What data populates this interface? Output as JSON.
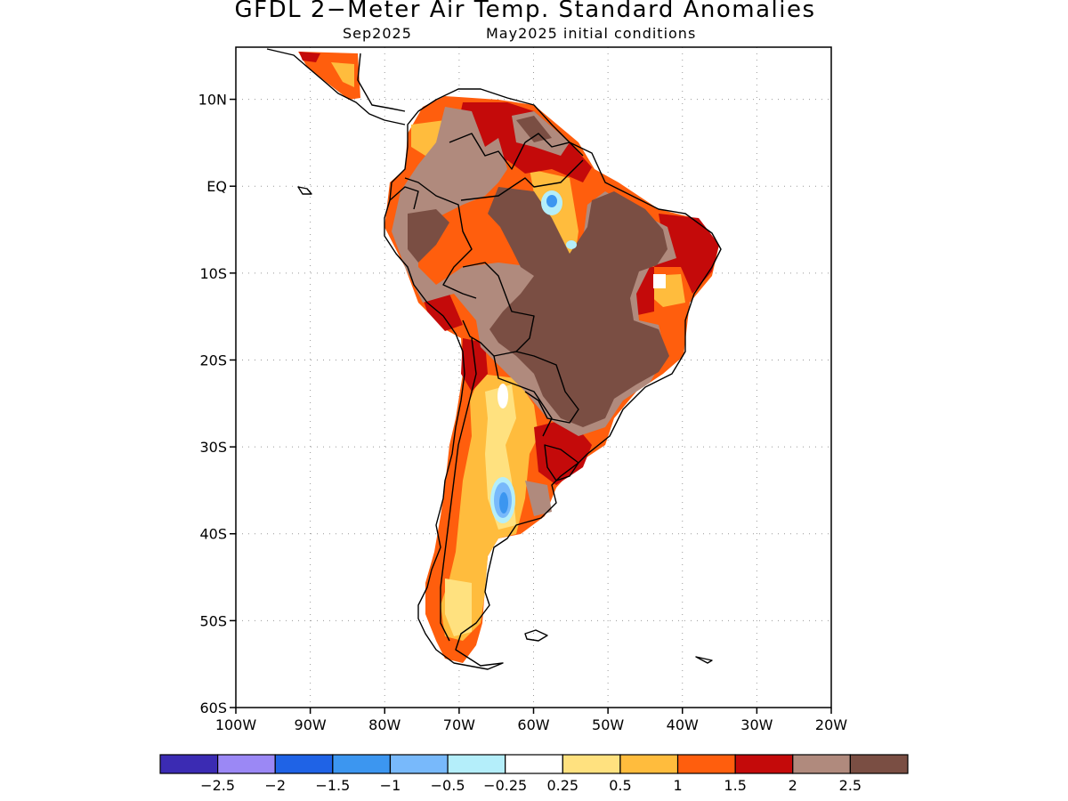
{
  "title": "GFDL 2−Meter Air Temp. Standard Anomalies",
  "subtitle_left": "Sep2025",
  "subtitle_right": "May2025 initial conditions",
  "map": {
    "lon_range": [
      -100,
      -20
    ],
    "lat_range": [
      -60,
      16
    ],
    "lat_ticks": [
      {
        "value": 10,
        "label": "10N"
      },
      {
        "value": 0,
        "label": "EQ"
      },
      {
        "value": -10,
        "label": "10S"
      },
      {
        "value": -20,
        "label": "20S"
      },
      {
        "value": -30,
        "label": "30S"
      },
      {
        "value": -40,
        "label": "40S"
      },
      {
        "value": -50,
        "label": "50S"
      },
      {
        "value": -60,
        "label": "60S"
      }
    ],
    "lon_ticks": [
      {
        "value": -100,
        "label": "100W"
      },
      {
        "value": -90,
        "label": "90W"
      },
      {
        "value": -80,
        "label": "80W"
      },
      {
        "value": -70,
        "label": "70W"
      },
      {
        "value": -60,
        "label": "60W"
      },
      {
        "value": -50,
        "label": "50W"
      },
      {
        "value": -40,
        "label": "40W"
      },
      {
        "value": -30,
        "label": "30W"
      },
      {
        "value": -20,
        "label": "20W"
      }
    ],
    "grid": "dotted"
  },
  "colorbar": {
    "colors": [
      "#3b2bb3",
      "#9b88f5",
      "#1f63e6",
      "#3c96f0",
      "#78b9fb",
      "#b4eefa",
      "#ffffff",
      "#ffe17f",
      "#ffbc3d",
      "#ff5e0d",
      "#c40a0a",
      "#b08a7d",
      "#7a4e43"
    ],
    "labels": [
      "−2.5",
      "−2",
      "−1.5",
      "−1",
      "−0.5",
      "−0.25",
      "0.25",
      "0.5",
      "1",
      "1.5",
      "2",
      "2.5"
    ]
  }
}
